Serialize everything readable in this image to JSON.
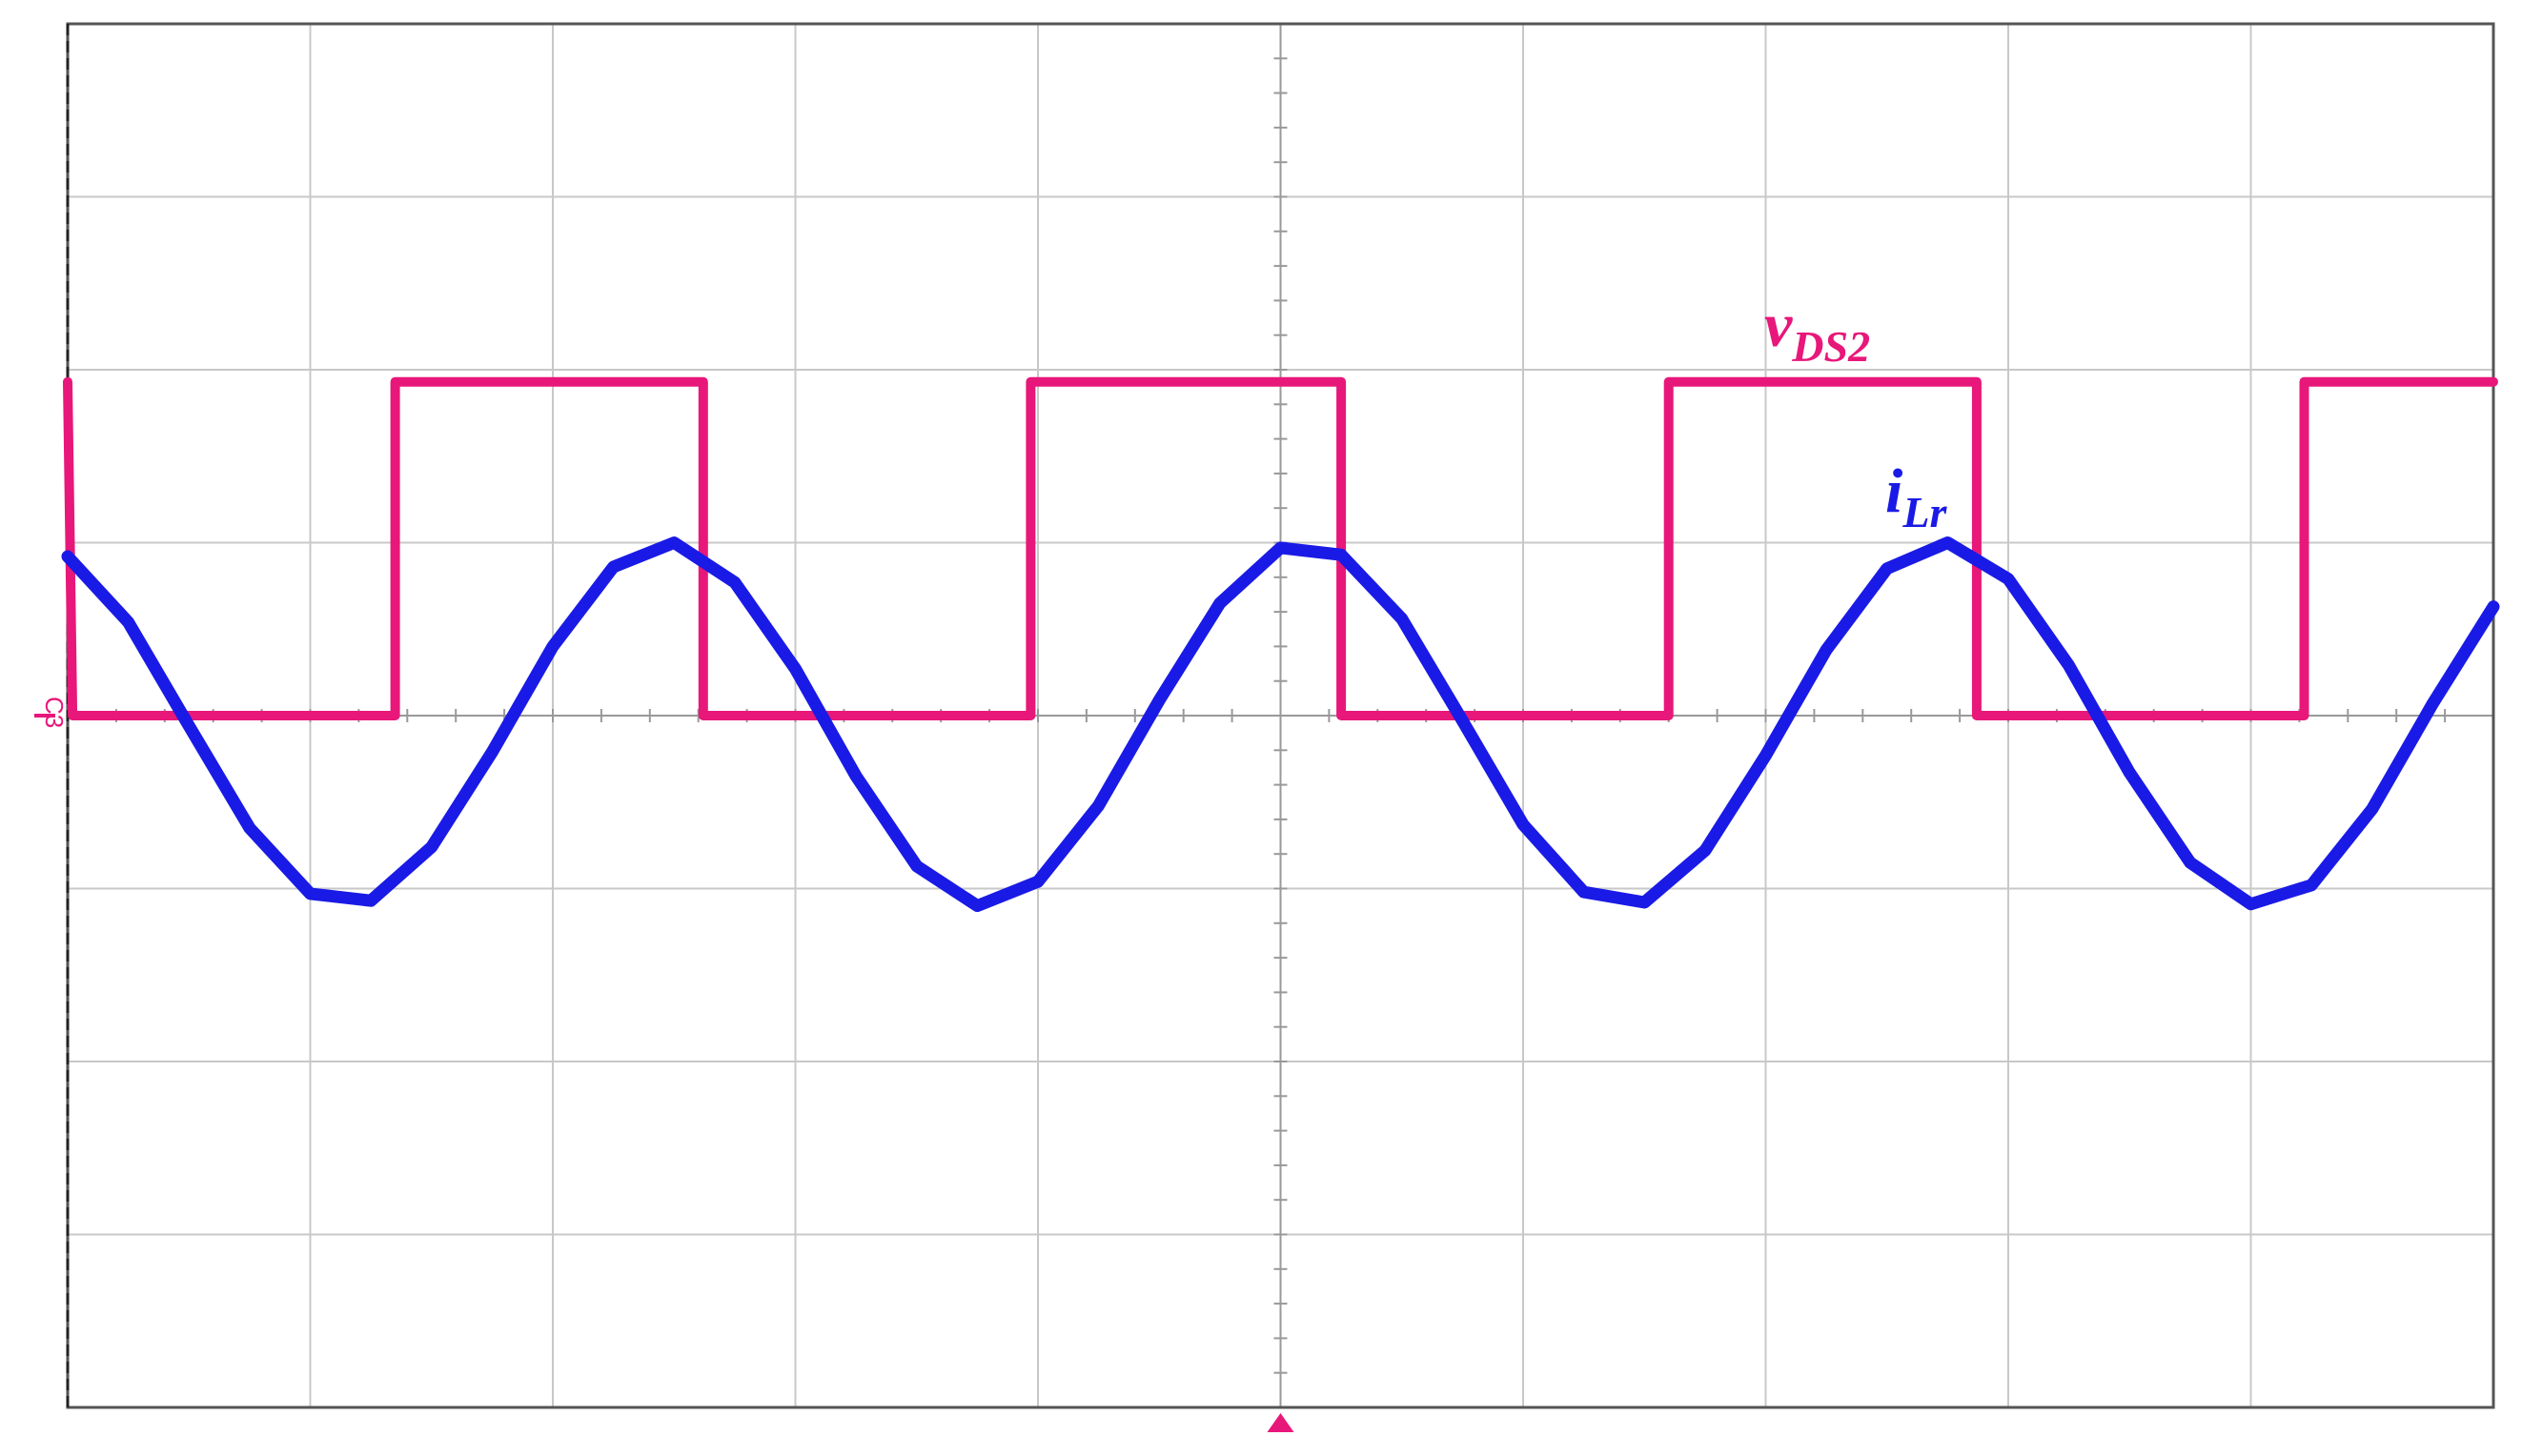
{
  "chart_data": {
    "type": "line",
    "channel_marker": "C3",
    "xlim": [
      0,
      10
    ],
    "ylim": [
      -4,
      4
    ],
    "xticks": [
      0,
      1,
      2,
      3,
      4,
      5,
      6,
      7,
      8,
      9,
      10
    ],
    "yticks": [
      -4,
      -3,
      -2,
      -1,
      0,
      1,
      2,
      3,
      4
    ],
    "grid": true,
    "series": [
      {
        "name": "v",
        "subscript": "DS2",
        "color": "#e8177a",
        "x": [
          0,
          0.02,
          1.35,
          1.35,
          2.62,
          2.62,
          3.97,
          3.97,
          5.25,
          5.25,
          6.6,
          6.6,
          7.87,
          7.87,
          9.22,
          9.22,
          10
        ],
        "values": [
          1.93,
          0,
          0,
          1.93,
          1.93,
          0,
          0,
          1.93,
          1.93,
          0,
          0,
          1.93,
          1.93,
          0,
          0,
          1.93,
          1.93
        ]
      },
      {
        "name": "i",
        "subscript": "Lr",
        "color": "#1a1ae6",
        "x": [
          0,
          0.25,
          0.5,
          0.75,
          1,
          1.25,
          1.5,
          1.75,
          2,
          2.25,
          2.5,
          2.75,
          3,
          3.25,
          3.5,
          3.75,
          4,
          4.25,
          4.5,
          4.75,
          5,
          5.25,
          5.5,
          5.75,
          6,
          6.25,
          6.5,
          6.75,
          7,
          7.25,
          7.5,
          7.75,
          8,
          8.25,
          8.5,
          8.75,
          9,
          9.25,
          9.5,
          9.75,
          10
        ],
        "values": [
          0.92,
          0.54,
          -0.06,
          -0.65,
          -1.03,
          -1.07,
          -0.76,
          -0.21,
          0.4,
          0.86,
          1.0,
          0.77,
          0.27,
          -0.35,
          -0.87,
          -1.1,
          -0.96,
          -0.52,
          0.09,
          0.65,
          0.97,
          0.93,
          0.56,
          -0.03,
          -0.63,
          -1.02,
          -1.08,
          -0.78,
          -0.23,
          0.38,
          0.85,
          1.0,
          0.79,
          0.29,
          -0.33,
          -0.85,
          -1.09,
          -0.98,
          -0.54,
          0.07,
          0.63
        ]
      }
    ]
  }
}
